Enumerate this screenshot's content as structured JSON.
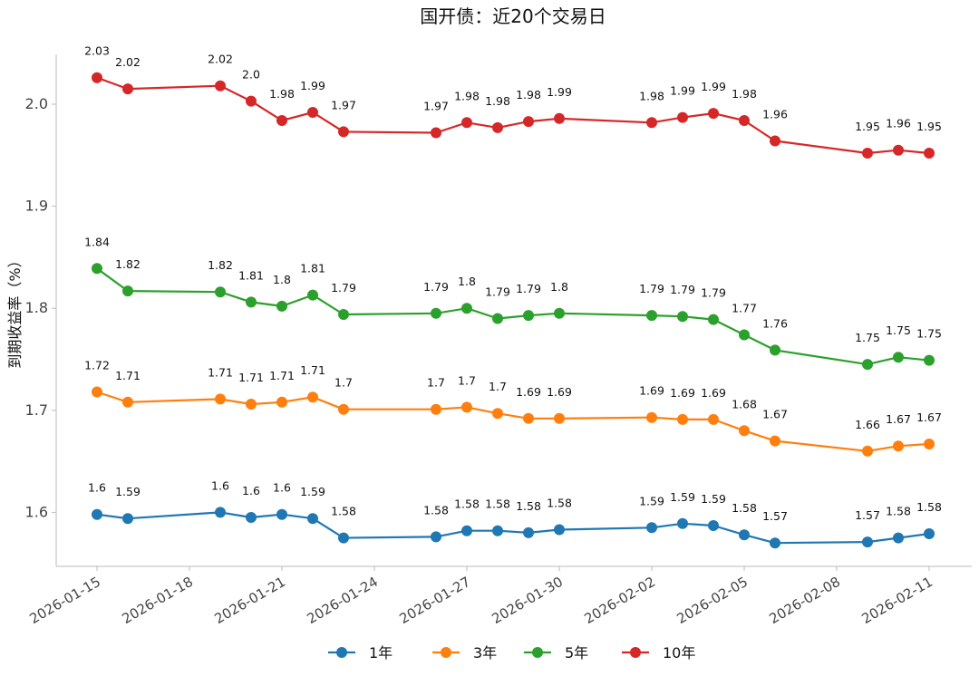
{
  "chart_data": {
    "type": "line",
    "title": "国开债：近20个交易日",
    "ylabel": "到期收益率（%）",
    "xlabel": "",
    "x": [
      "2026-01-15",
      "2026-01-16",
      "2026-01-19",
      "2026-01-20",
      "2026-01-21",
      "2026-01-22",
      "2026-01-23",
      "2026-01-26",
      "2026-01-27",
      "2026-01-28",
      "2026-01-29",
      "2026-01-30",
      "2026-02-02",
      "2026-02-03",
      "2026-02-04",
      "2026-02-05",
      "2026-02-06",
      "2026-02-09",
      "2026-02-10",
      "2026-02-11"
    ],
    "x_ticks": [
      "2026-01-15",
      "2026-01-18",
      "2026-01-21",
      "2026-01-24",
      "2026-01-27",
      "2026-01-30",
      "2026-02-02",
      "2026-02-05",
      "2026-02-08",
      "2026-02-11"
    ],
    "y_ticks": [
      "1.6",
      "1.7",
      "1.8",
      "1.9",
      "2.0"
    ],
    "ylim": [
      1.55,
      2.05
    ],
    "grid": false,
    "legend_position": "bottom-center",
    "series": [
      {
        "name": "1年",
        "color": "#1f77b4",
        "values": [
          1.598,
          1.594,
          1.6,
          1.595,
          1.598,
          1.594,
          1.575,
          1.576,
          1.582,
          1.582,
          1.58,
          1.583,
          1.585,
          1.589,
          1.587,
          1.578,
          1.57,
          1.571,
          1.575,
          1.579
        ],
        "labels": [
          "1.6",
          "1.59",
          "1.6",
          "1.6",
          "1.6",
          "1.59",
          "1.58",
          "1.58",
          "1.58",
          "1.58",
          "1.58",
          "1.58",
          "1.59",
          "1.59",
          "1.59",
          "1.58",
          "1.57",
          "1.57",
          "1.58",
          "1.58"
        ]
      },
      {
        "name": "3年",
        "color": "#ff7f0e",
        "values": [
          1.718,
          1.708,
          1.711,
          1.706,
          1.708,
          1.713,
          1.701,
          1.701,
          1.703,
          1.697,
          1.692,
          1.692,
          1.693,
          1.691,
          1.691,
          1.68,
          1.67,
          1.66,
          1.665,
          1.667
        ],
        "labels": [
          "1.72",
          "1.71",
          "1.71",
          "1.71",
          "1.71",
          "1.71",
          "1.7",
          "1.7",
          "1.7",
          "1.7",
          "1.69",
          "1.69",
          "1.69",
          "1.69",
          "1.69",
          "1.68",
          "1.67",
          "1.66",
          "1.67",
          "1.67"
        ]
      },
      {
        "name": "5年",
        "color": "#2ca02c",
        "values": [
          1.839,
          1.817,
          1.816,
          1.806,
          1.802,
          1.813,
          1.794,
          1.795,
          1.8,
          1.79,
          1.793,
          1.795,
          1.793,
          1.792,
          1.789,
          1.774,
          1.759,
          1.745,
          1.752,
          1.749
        ],
        "labels": [
          "1.84",
          "1.82",
          "1.82",
          "1.81",
          "1.8",
          "1.81",
          "1.79",
          "1.79",
          "1.8",
          "1.79",
          "1.79",
          "1.8",
          "1.79",
          "1.79",
          "1.79",
          "1.77",
          "1.76",
          "1.75",
          "1.75",
          "1.75"
        ]
      },
      {
        "name": "10年",
        "color": "#d62728",
        "values": [
          2.026,
          2.015,
          2.018,
          2.003,
          1.984,
          1.992,
          1.973,
          1.972,
          1.982,
          1.977,
          1.983,
          1.986,
          1.982,
          1.987,
          1.991,
          1.984,
          1.964,
          1.952,
          1.955,
          1.952
        ],
        "labels": [
          "2.03",
          "2.02",
          "2.02",
          "2.0",
          "1.98",
          "1.99",
          "1.97",
          "1.97",
          "1.98",
          "1.98",
          "1.98",
          "1.99",
          "1.98",
          "1.99",
          "1.99",
          "1.98",
          "1.96",
          "1.95",
          "1.96",
          "1.95"
        ]
      }
    ]
  }
}
